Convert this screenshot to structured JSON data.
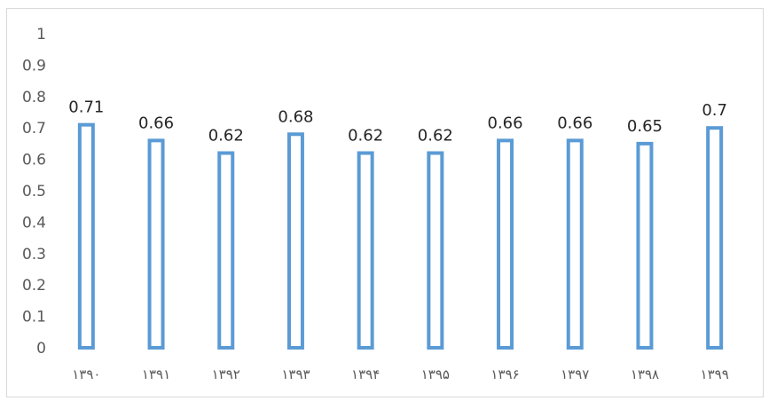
{
  "chart_data": {
    "type": "bar",
    "categories": [
      "۱۳۹۰",
      "۱۳۹۱",
      "۱۳۹۲",
      "۱۳۹۳",
      "۱۳۹۴",
      "۱۳۹۵",
      "۱۳۹۶",
      "۱۳۹۷",
      "۱۳۹۸",
      "۱۳۹۹"
    ],
    "values": [
      0.71,
      0.66,
      0.62,
      0.68,
      0.62,
      0.62,
      0.66,
      0.66,
      0.65,
      0.7
    ],
    "data_labels": [
      "0.71",
      "0.66",
      "0.62",
      "0.68",
      "0.62",
      "0.62",
      "0.66",
      "0.66",
      "0.65",
      "0.7"
    ],
    "ylim": [
      0,
      1
    ],
    "yticks": [
      "0",
      "0.1",
      "0.2",
      "0.3",
      "0.4",
      "0.5",
      "0.6",
      "0.7",
      "0.8",
      "0.9",
      "1"
    ],
    "grid": false,
    "legend": "none",
    "bar_style": "outline",
    "bar_color": "#5b9bd5"
  }
}
